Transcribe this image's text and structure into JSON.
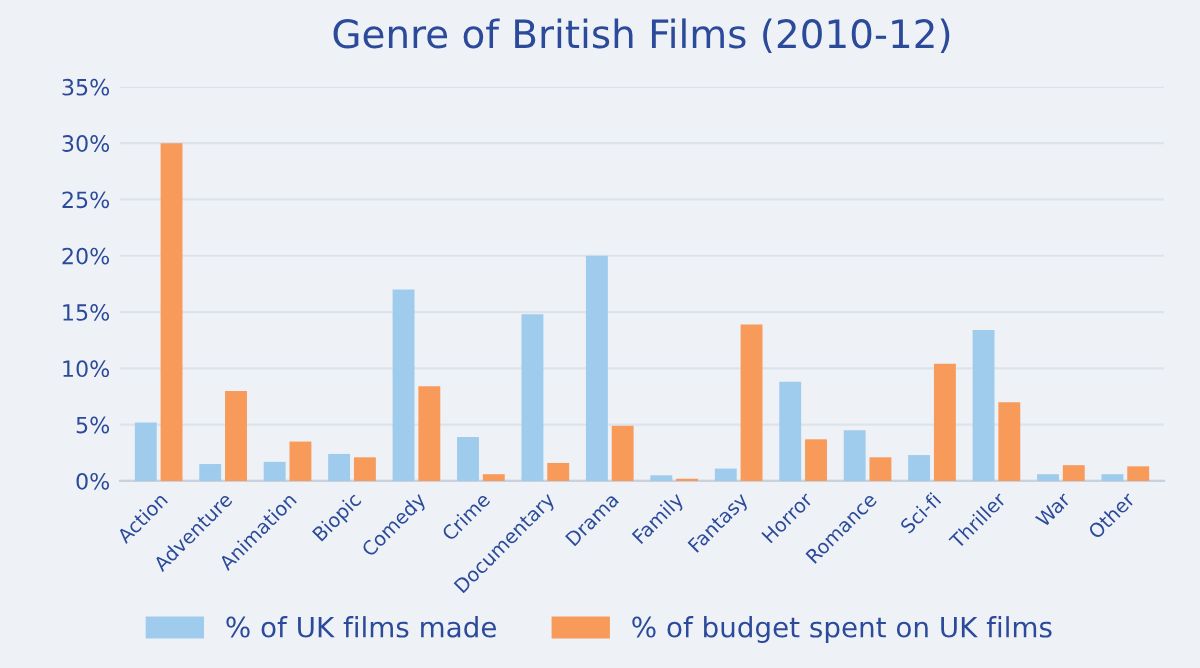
{
  "chart_data": {
    "type": "bar",
    "title": "Genre of British Films (2010-12)",
    "categories": [
      "Action",
      "Adventure",
      "Animation",
      "Biopic",
      "Comedy",
      "Crime",
      "Documentary",
      "Drama",
      "Family",
      "Fantasy",
      "Horror",
      "Romance",
      "Sci-fi",
      "Thriller",
      "War",
      "Other"
    ],
    "series": [
      {
        "name": "% of UK films made",
        "color": "#9fcbec",
        "values": [
          5.2,
          1.5,
          1.7,
          2.4,
          17,
          3.9,
          14.8,
          20,
          0.5,
          1.1,
          8.8,
          4.5,
          2.3,
          13.4,
          0.6,
          0.6
        ]
      },
      {
        "name": "% of budget spent on UK films",
        "color": "#f79a5a",
        "values": [
          30,
          8,
          3.5,
          2.1,
          8.4,
          0.6,
          1.6,
          4.9,
          0.2,
          13.9,
          3.7,
          2.1,
          10.4,
          7.0,
          1.4,
          1.3
        ]
      }
    ],
    "ylim": [
      0,
      35
    ],
    "yticks": [
      {
        "value": 0,
        "label": "0%"
      },
      {
        "value": 5,
        "label": "5%"
      },
      {
        "value": 10,
        "label": "10%"
      },
      {
        "value": 15,
        "label": "15%"
      },
      {
        "value": 20,
        "label": "20%"
      },
      {
        "value": 25,
        "label": "25%"
      },
      {
        "value": 30,
        "label": "30%"
      },
      {
        "value": 35,
        "label": "35%"
      }
    ],
    "grid": "y",
    "legend": "bottom"
  }
}
